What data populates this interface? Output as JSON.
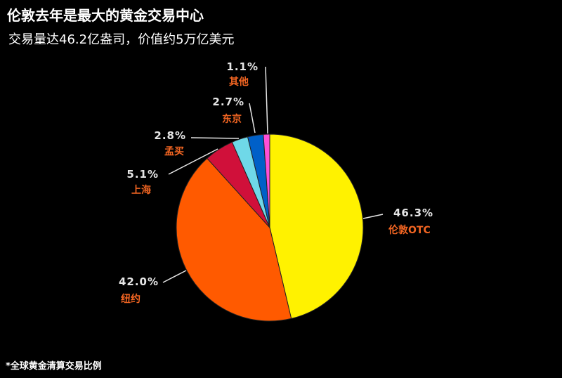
{
  "title": "伦敦去年是最大的黄金交易中心",
  "subtitle": "交易量达46.2亿盎司，价值约5万亿美元",
  "footnote": "*全球黄金清算交易比例",
  "chart_data": {
    "type": "pie",
    "start": "12 o'clock, clockwise",
    "slices": [
      {
        "name": "伦敦OTC",
        "value": 46.3,
        "label": "46.3%",
        "color": "#fff200"
      },
      {
        "name": "纽约",
        "value": 42.0,
        "label": "42.0%",
        "color": "#ff5a00"
      },
      {
        "name": "上海",
        "value": 5.1,
        "label": "5.1%",
        "color": "#d0103a"
      },
      {
        "name": "孟买",
        "value": 2.8,
        "label": "2.8%",
        "color": "#6fd8e8"
      },
      {
        "name": "东京",
        "value": 2.7,
        "label": "2.7%",
        "color": "#0060c8"
      },
      {
        "name": "其他",
        "value": 1.1,
        "label": "1.1%",
        "color": "#ff4fd8"
      }
    ]
  }
}
